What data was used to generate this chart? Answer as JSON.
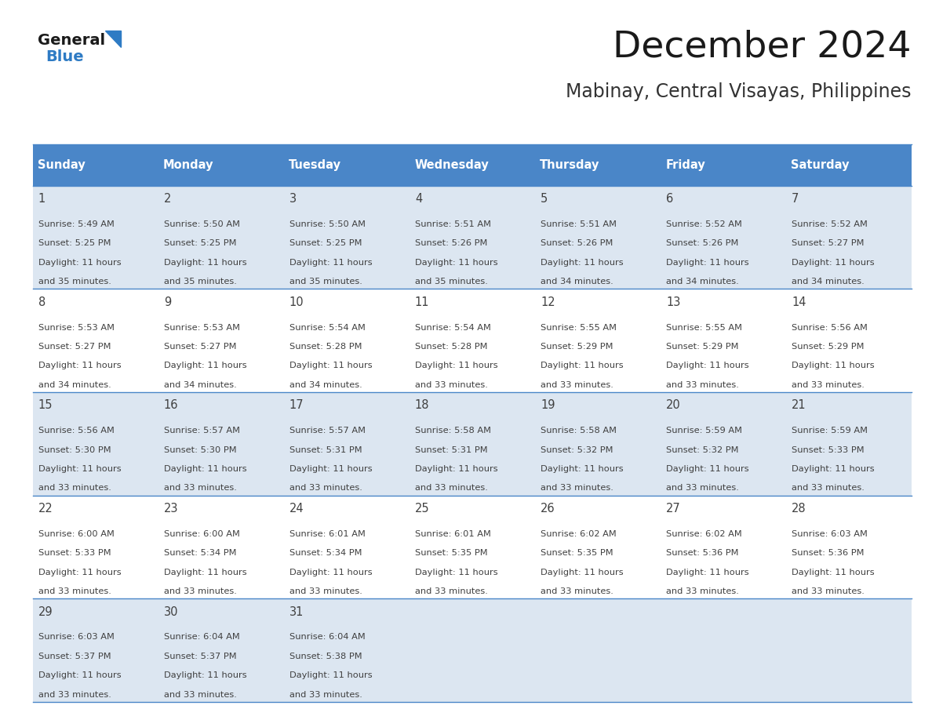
{
  "title": "December 2024",
  "subtitle": "Mabinay, Central Visayas, Philippines",
  "days_of_week": [
    "Sunday",
    "Monday",
    "Tuesday",
    "Wednesday",
    "Thursday",
    "Friday",
    "Saturday"
  ],
  "header_bg": "#4a86c8",
  "header_text": "#ffffff",
  "row_bg_odd": "#dce6f1",
  "row_bg_even": "#ffffff",
  "border_color": "#4a86c8",
  "text_color": "#404040",
  "title_color": "#1a1a1a",
  "subtitle_color": "#333333",
  "logo_general_color": "#1a1a1a",
  "logo_blue_color": "#2e7bc4",
  "weeks": [
    [
      {
        "day": 1,
        "sunrise": "5:49 AM",
        "sunset": "5:25 PM",
        "daylight_h": "11 hours",
        "daylight_m": "and 35 minutes."
      },
      {
        "day": 2,
        "sunrise": "5:50 AM",
        "sunset": "5:25 PM",
        "daylight_h": "11 hours",
        "daylight_m": "and 35 minutes."
      },
      {
        "day": 3,
        "sunrise": "5:50 AM",
        "sunset": "5:25 PM",
        "daylight_h": "11 hours",
        "daylight_m": "and 35 minutes."
      },
      {
        "day": 4,
        "sunrise": "5:51 AM",
        "sunset": "5:26 PM",
        "daylight_h": "11 hours",
        "daylight_m": "and 35 minutes."
      },
      {
        "day": 5,
        "sunrise": "5:51 AM",
        "sunset": "5:26 PM",
        "daylight_h": "11 hours",
        "daylight_m": "and 34 minutes."
      },
      {
        "day": 6,
        "sunrise": "5:52 AM",
        "sunset": "5:26 PM",
        "daylight_h": "11 hours",
        "daylight_m": "and 34 minutes."
      },
      {
        "day": 7,
        "sunrise": "5:52 AM",
        "sunset": "5:27 PM",
        "daylight_h": "11 hours",
        "daylight_m": "and 34 minutes."
      }
    ],
    [
      {
        "day": 8,
        "sunrise": "5:53 AM",
        "sunset": "5:27 PM",
        "daylight_h": "11 hours",
        "daylight_m": "and 34 minutes."
      },
      {
        "day": 9,
        "sunrise": "5:53 AM",
        "sunset": "5:27 PM",
        "daylight_h": "11 hours",
        "daylight_m": "and 34 minutes."
      },
      {
        "day": 10,
        "sunrise": "5:54 AM",
        "sunset": "5:28 PM",
        "daylight_h": "11 hours",
        "daylight_m": "and 34 minutes."
      },
      {
        "day": 11,
        "sunrise": "5:54 AM",
        "sunset": "5:28 PM",
        "daylight_h": "11 hours",
        "daylight_m": "and 33 minutes."
      },
      {
        "day": 12,
        "sunrise": "5:55 AM",
        "sunset": "5:29 PM",
        "daylight_h": "11 hours",
        "daylight_m": "and 33 minutes."
      },
      {
        "day": 13,
        "sunrise": "5:55 AM",
        "sunset": "5:29 PM",
        "daylight_h": "11 hours",
        "daylight_m": "and 33 minutes."
      },
      {
        "day": 14,
        "sunrise": "5:56 AM",
        "sunset": "5:29 PM",
        "daylight_h": "11 hours",
        "daylight_m": "and 33 minutes."
      }
    ],
    [
      {
        "day": 15,
        "sunrise": "5:56 AM",
        "sunset": "5:30 PM",
        "daylight_h": "11 hours",
        "daylight_m": "and 33 minutes."
      },
      {
        "day": 16,
        "sunrise": "5:57 AM",
        "sunset": "5:30 PM",
        "daylight_h": "11 hours",
        "daylight_m": "and 33 minutes."
      },
      {
        "day": 17,
        "sunrise": "5:57 AM",
        "sunset": "5:31 PM",
        "daylight_h": "11 hours",
        "daylight_m": "and 33 minutes."
      },
      {
        "day": 18,
        "sunrise": "5:58 AM",
        "sunset": "5:31 PM",
        "daylight_h": "11 hours",
        "daylight_m": "and 33 minutes."
      },
      {
        "day": 19,
        "sunrise": "5:58 AM",
        "sunset": "5:32 PM",
        "daylight_h": "11 hours",
        "daylight_m": "and 33 minutes."
      },
      {
        "day": 20,
        "sunrise": "5:59 AM",
        "sunset": "5:32 PM",
        "daylight_h": "11 hours",
        "daylight_m": "and 33 minutes."
      },
      {
        "day": 21,
        "sunrise": "5:59 AM",
        "sunset": "5:33 PM",
        "daylight_h": "11 hours",
        "daylight_m": "and 33 minutes."
      }
    ],
    [
      {
        "day": 22,
        "sunrise": "6:00 AM",
        "sunset": "5:33 PM",
        "daylight_h": "11 hours",
        "daylight_m": "and 33 minutes."
      },
      {
        "day": 23,
        "sunrise": "6:00 AM",
        "sunset": "5:34 PM",
        "daylight_h": "11 hours",
        "daylight_m": "and 33 minutes."
      },
      {
        "day": 24,
        "sunrise": "6:01 AM",
        "sunset": "5:34 PM",
        "daylight_h": "11 hours",
        "daylight_m": "and 33 minutes."
      },
      {
        "day": 25,
        "sunrise": "6:01 AM",
        "sunset": "5:35 PM",
        "daylight_h": "11 hours",
        "daylight_m": "and 33 minutes."
      },
      {
        "day": 26,
        "sunrise": "6:02 AM",
        "sunset": "5:35 PM",
        "daylight_h": "11 hours",
        "daylight_m": "and 33 minutes."
      },
      {
        "day": 27,
        "sunrise": "6:02 AM",
        "sunset": "5:36 PM",
        "daylight_h": "11 hours",
        "daylight_m": "and 33 minutes."
      },
      {
        "day": 28,
        "sunrise": "6:03 AM",
        "sunset": "5:36 PM",
        "daylight_h": "11 hours",
        "daylight_m": "and 33 minutes."
      }
    ],
    [
      {
        "day": 29,
        "sunrise": "6:03 AM",
        "sunset": "5:37 PM",
        "daylight_h": "11 hours",
        "daylight_m": "and 33 minutes."
      },
      {
        "day": 30,
        "sunrise": "6:04 AM",
        "sunset": "5:37 PM",
        "daylight_h": "11 hours",
        "daylight_m": "and 33 minutes."
      },
      {
        "day": 31,
        "sunrise": "6:04 AM",
        "sunset": "5:38 PM",
        "daylight_h": "11 hours",
        "daylight_m": "and 33 minutes."
      },
      null,
      null,
      null,
      null
    ]
  ]
}
